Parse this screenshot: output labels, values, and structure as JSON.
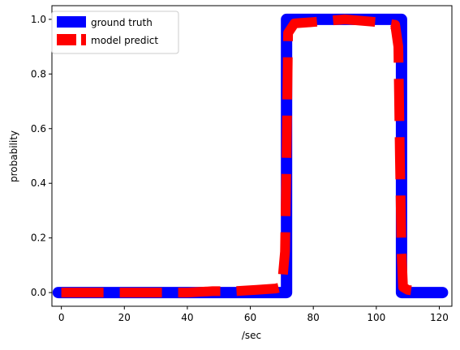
{
  "chart_data": {
    "type": "line",
    "title": "",
    "xlabel": "/sec",
    "ylabel": "probability",
    "xlim": [
      -3.0,
      124.0
    ],
    "ylim": [
      -0.05,
      1.05
    ],
    "xticks": [
      0,
      20,
      40,
      60,
      80,
      100,
      120
    ],
    "yticks": [
      0.0,
      0.2,
      0.4,
      0.6,
      0.8,
      1.0
    ],
    "xtick_labels": [
      "0",
      "20",
      "40",
      "60",
      "80",
      "100",
      "120"
    ],
    "ytick_labels": [
      "0.0",
      "0.2",
      "0.4",
      "0.6",
      "0.8",
      "1.0"
    ],
    "grid": false,
    "legend_position": "top-left",
    "series": [
      {
        "name": "ground truth",
        "color": "#0000ff",
        "style": "solid",
        "x": [
          -1,
          71.5,
          71.5,
          108,
          108,
          121
        ],
        "y": [
          0.0,
          0.0,
          1.0,
          1.0,
          0.0,
          0.0
        ]
      },
      {
        "name": "model predict",
        "color": "#ff0000",
        "style": "dashed",
        "x": [
          0,
          10,
          20,
          30,
          40,
          48,
          55,
          62,
          68,
          70,
          71,
          71.5,
          72,
          74,
          80,
          90,
          100,
          106,
          107,
          107.5,
          108,
          108.5,
          110,
          113
        ],
        "y": [
          0.0,
          0.0,
          0.0,
          0.0,
          0.0,
          0.005,
          0.005,
          0.01,
          0.015,
          0.02,
          0.15,
          0.5,
          0.95,
          0.985,
          0.99,
          1.0,
          0.99,
          0.98,
          0.9,
          0.5,
          0.15,
          0.02,
          0.01,
          0.005
        ]
      }
    ]
  }
}
